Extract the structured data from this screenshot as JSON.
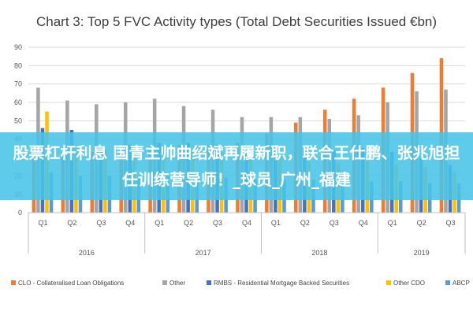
{
  "chart_data": {
    "type": "bar",
    "title": "Chart 3: Top 5 FVC Activity types (Total Debt Securities Issued €bn)",
    "ylim": [
      0,
      90
    ],
    "yticks": [
      0,
      10,
      20,
      30,
      40,
      50,
      60,
      70,
      80,
      90
    ],
    "categories": [
      "Q1",
      "Q2",
      "Q3",
      "Q4",
      "Q1",
      "Q2",
      "Q3",
      "Q4",
      "Q1",
      "Q2",
      "Q3",
      "Q4",
      "Q1",
      "Q2",
      "Q3"
    ],
    "years": [
      {
        "label": "2016",
        "quarters": 4
      },
      {
        "label": "2017",
        "quarters": 4
      },
      {
        "label": "2018",
        "quarters": 4
      },
      {
        "label": "2019",
        "quarters": 3
      }
    ],
    "series": [
      {
        "name": "CLO - Collateralised Loan Obligations",
        "color": "#ed7d31",
        "values": [
          35,
          33,
          33,
          34,
          36,
          37,
          37,
          38,
          43,
          49,
          56,
          62,
          68,
          76,
          84
        ]
      },
      {
        "name": "Other",
        "color": "#a5a5a5",
        "values": [
          68,
          61,
          59,
          60,
          62,
          58,
          56,
          52,
          52,
          52,
          51,
          53,
          60,
          66,
          67
        ]
      },
      {
        "name": "RMBS - Residential Mortgage Backed Securities",
        "color": "#4472c4",
        "values": [
          46,
          45,
          36,
          37,
          38,
          38,
          37,
          36,
          35,
          35,
          34,
          35,
          33,
          30,
          26
        ]
      },
      {
        "name": "Other CDO",
        "color": "#ffc000",
        "values": [
          55,
          37,
          34,
          33,
          34,
          33,
          33,
          32,
          30,
          28,
          27,
          28,
          26,
          25,
          22
        ]
      },
      {
        "name": "ABCP",
        "color": "#5b9bd5",
        "values": [
          22,
          20,
          20,
          19,
          20,
          19,
          19,
          18,
          18,
          18,
          17,
          17,
          17,
          16,
          16
        ]
      }
    ],
    "legend_position": "bottom",
    "grid": true
  },
  "overlay": {
    "text": "股票杠杆利息 国青主帅曲绍斌再履新职，联合王仕鹏、张兆旭担任训练营导师！_球员_广州_福建",
    "color": "#48c4e8"
  }
}
